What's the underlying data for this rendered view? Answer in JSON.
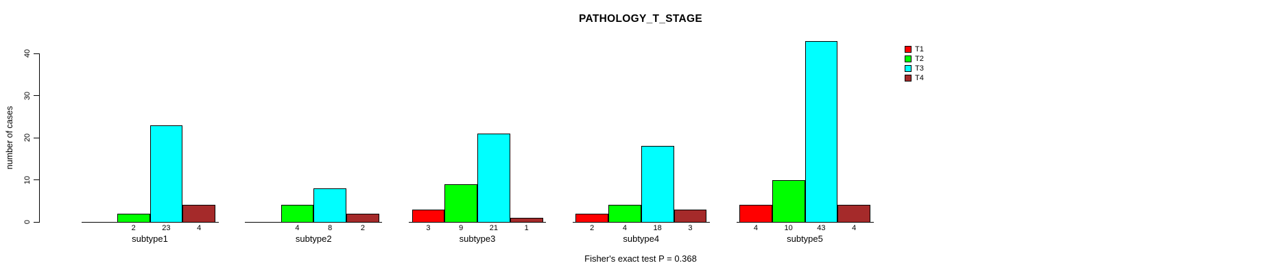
{
  "chart_data": {
    "type": "bar",
    "title": "PATHOLOGY_T_STAGE",
    "xlabel": "",
    "ylabel": "number of cases",
    "annotation": "Fisher's exact test P = 0.368",
    "ylim": [
      0,
      40
    ],
    "yticks": [
      0,
      10,
      20,
      30,
      40
    ],
    "grid": false,
    "legend_position": "right",
    "bar_value_labels": true,
    "hide_zero_value_labels": true,
    "categories": [
      "subtype1",
      "subtype2",
      "subtype3",
      "subtype4",
      "subtype5"
    ],
    "series": [
      {
        "name": "T1",
        "color": "#FF0000",
        "values": [
          0,
          0,
          3,
          2,
          4
        ]
      },
      {
        "name": "T2",
        "color": "#00FF00",
        "values": [
          2,
          4,
          9,
          4,
          10
        ]
      },
      {
        "name": "T3",
        "color": "#00FFFF",
        "values": [
          23,
          8,
          21,
          18,
          43
        ]
      },
      {
        "name": "T4",
        "color": "#A52A2A",
        "values": [
          4,
          2,
          1,
          3,
          4
        ]
      }
    ]
  }
}
